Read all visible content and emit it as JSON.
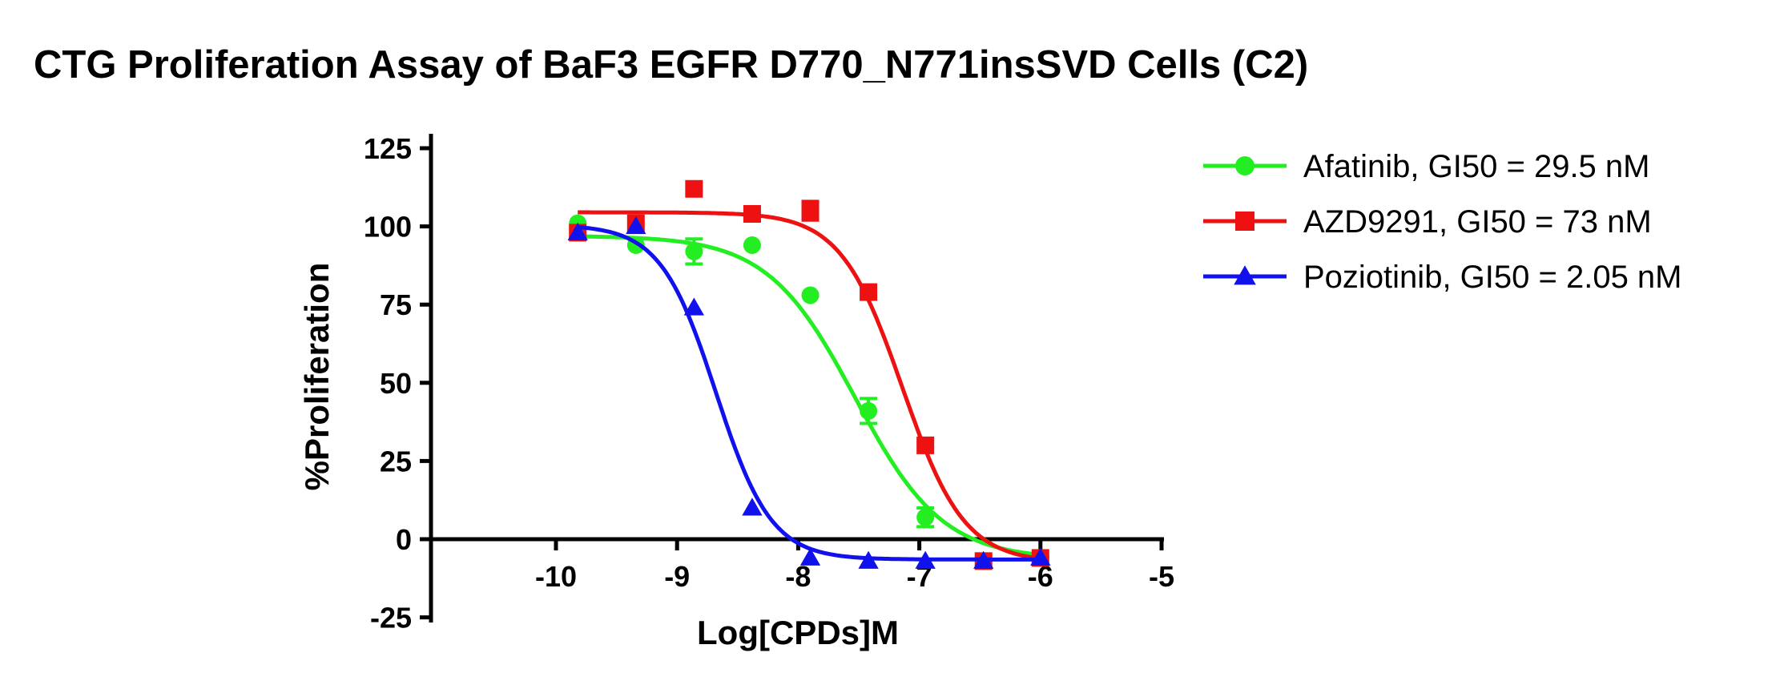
{
  "chart_data": {
    "type": "scatter",
    "title": "CTG Proliferation Assay of BaF3 EGFR D770_N771insSVD Cells (C2)",
    "xlabel": "Log[CPDs]M",
    "ylabel": "%Proliferation",
    "xlim": [
      -11,
      -5
    ],
    "ylim": [
      -25,
      125
    ],
    "xticks": [
      -10,
      -9,
      -8,
      -7,
      -6,
      -5
    ],
    "yticks": [
      -25,
      0,
      25,
      50,
      75,
      100,
      125
    ],
    "xtick_labels": [
      "-10",
      "-9",
      "-8",
      "-7",
      "-6",
      "-5"
    ],
    "ytick_labels": [
      "-25",
      "0",
      "25",
      "50",
      "75",
      "100",
      "125"
    ],
    "legend_position": "top-right",
    "series": [
      {
        "name": "Afatinib",
        "legend_label": "Afatinib, GI50 = 29.5 nM",
        "color": "#22ee22",
        "marker": "circle",
        "x": [
          -9.82,
          -9.34,
          -8.86,
          -8.38,
          -7.9,
          -7.42,
          -6.95,
          -6.47,
          -6.0
        ],
        "y": [
          101,
          94,
          92,
          94,
          78,
          41,
          7,
          -7,
          -6
        ],
        "error": [
          0,
          0,
          4,
          0,
          0,
          4,
          3,
          0,
          0
        ],
        "fit": {
          "bottom": -6.5,
          "top": 97,
          "logec50": -7.53,
          "hill": -1.2
        }
      },
      {
        "name": "AZD9291",
        "legend_label": "AZD9291, GI50 = 73 nM",
        "color": "#ee1111",
        "marker": "square",
        "x": [
          -9.82,
          -9.34,
          -8.86,
          -8.38,
          -7.9,
          -7.42,
          -6.95,
          -6.47,
          -6.0
        ],
        "y": [
          98,
          101,
          112,
          104,
          105,
          79,
          30,
          -7,
          -6
        ],
        "error": [
          0,
          0,
          0,
          0,
          3,
          0,
          0,
          0,
          0
        ],
        "fit": {
          "bottom": -7.5,
          "top": 104.5,
          "logec50": -7.14,
          "hill": -1.7
        }
      },
      {
        "name": "Poziotinib",
        "legend_label": "Poziotinib, GI50 = 2.05 nM",
        "color": "#1111ee",
        "marker": "triangle",
        "x": [
          -9.82,
          -9.34,
          -8.86,
          -8.38,
          -7.9,
          -7.42,
          -6.95,
          -6.47,
          -6.0
        ],
        "y": [
          98,
          100,
          74,
          10,
          -6,
          -7,
          -7,
          -7,
          -6
        ],
        "error": [
          0,
          0,
          0,
          0,
          0,
          0,
          0,
          0,
          0
        ],
        "fit": {
          "bottom": -6.5,
          "top": 100.5,
          "logec50": -8.68,
          "hill": -1.9
        }
      }
    ]
  }
}
